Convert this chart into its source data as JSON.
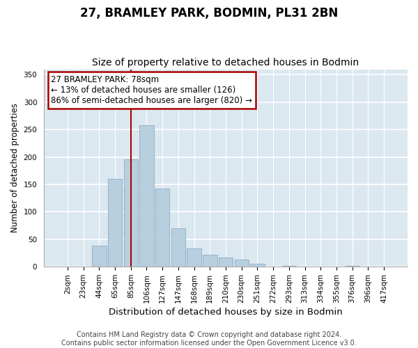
{
  "title": "27, BRAMLEY PARK, BODMIN, PL31 2BN",
  "subtitle": "Size of property relative to detached houses in Bodmin",
  "xlabel": "Distribution of detached houses by size in Bodmin",
  "ylabel": "Number of detached properties",
  "footer_line1": "Contains HM Land Registry data © Crown copyright and database right 2024.",
  "footer_line2": "Contains public sector information licensed under the Open Government Licence v3.0.",
  "bar_labels": [
    "2sqm",
    "23sqm",
    "44sqm",
    "65sqm",
    "85sqm",
    "106sqm",
    "127sqm",
    "147sqm",
    "168sqm",
    "189sqm",
    "210sqm",
    "230sqm",
    "251sqm",
    "272sqm",
    "293sqm",
    "313sqm",
    "334sqm",
    "355sqm",
    "376sqm",
    "396sqm",
    "417sqm"
  ],
  "bar_values": [
    0,
    0,
    38,
    160,
    196,
    258,
    142,
    70,
    33,
    22,
    17,
    13,
    5,
    0,
    1,
    0,
    0,
    0,
    1,
    0,
    0
  ],
  "bar_color": "#b8cfe0",
  "bar_edge_color": "#9ab4cc",
  "highlight_bar_index": 4,
  "highlight_line_color": "#aa0000",
  "annotation_line1": "27 BRAMLEY PARK: 78sqm",
  "annotation_line2": "← 13% of detached houses are smaller (126)",
  "annotation_line3": "86% of semi-detached houses are larger (820) →",
  "annotation_box_edgecolor": "#aa0000",
  "annotation_box_facecolor": "#ffffff",
  "ylim": [
    0,
    360
  ],
  "yticks": [
    0,
    50,
    100,
    150,
    200,
    250,
    300,
    350
  ],
  "background_color": "#dce8f0",
  "fig_background": "#ffffff",
  "title_fontsize": 12,
  "subtitle_fontsize": 10,
  "xlabel_fontsize": 9.5,
  "ylabel_fontsize": 8.5,
  "annotation_fontsize": 8.5,
  "tick_fontsize": 7.5,
  "footer_fontsize": 7
}
